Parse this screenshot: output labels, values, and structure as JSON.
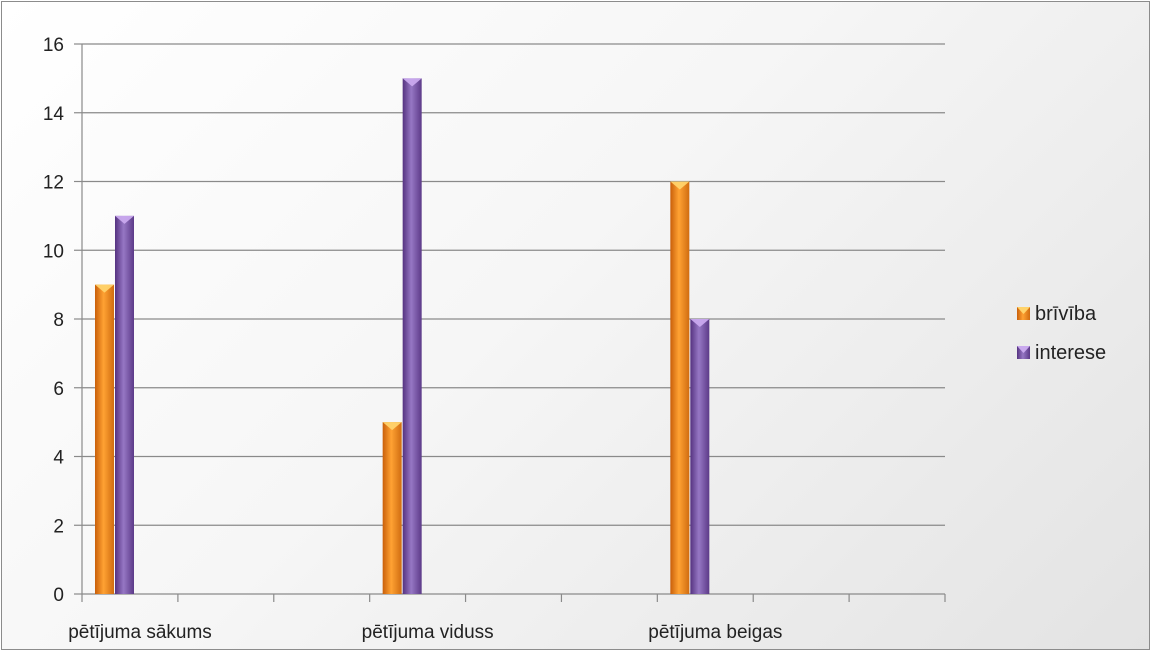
{
  "chart_data": {
    "type": "bar",
    "title": "",
    "xlabel": "",
    "ylabel": "",
    "categories": [
      "pētījuma sākums",
      "pētījuma viduss",
      "pētījuma beigas"
    ],
    "series": [
      {
        "name": "brīvība",
        "values": [
          9,
          5,
          12
        ],
        "color": "#f28c1e"
      },
      {
        "name": "interese",
        "values": [
          11,
          15,
          8
        ],
        "color": "#7b55a3"
      }
    ],
    "ylim": [
      0,
      16
    ],
    "yticks": [
      "0",
      "2",
      "4",
      "6",
      "8",
      "10",
      "12",
      "14",
      "16"
    ],
    "grid": true,
    "legend_position": "right"
  }
}
